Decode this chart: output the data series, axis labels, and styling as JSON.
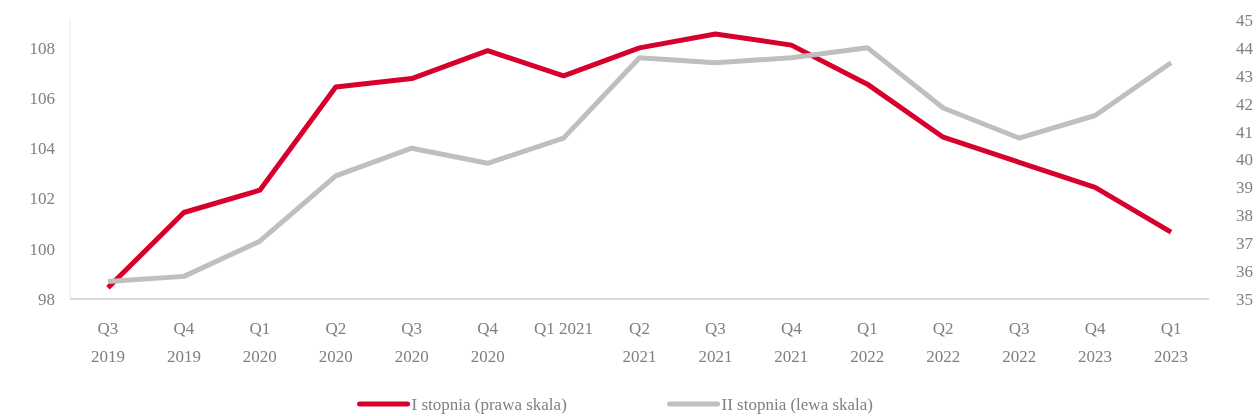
{
  "chart_data": {
    "type": "line",
    "categories": [
      "Q3\n2019",
      "Q4\n2019",
      "Q1\n2020",
      "Q2\n2020",
      "Q3\n2020",
      "Q4\n2020",
      "Q1 2021",
      "Q2\n2021",
      "Q3\n2021",
      "Q4\n2021",
      "Q1\n2022",
      "Q2\n2022",
      "Q3\n2022",
      "Q4\n2023",
      "Q1\n2023"
    ],
    "series": [
      {
        "name": "I stopnia (prawa skala)",
        "color": "#d7002d",
        "axis": "y2",
        "values": [
          35.4,
          38.1,
          38.9,
          42.6,
          42.9,
          43.9,
          43.0,
          44.0,
          44.5,
          44.1,
          42.7,
          40.8,
          39.9,
          39.0,
          37.4
        ]
      },
      {
        "name": "II stopnia (lewa skala)",
        "color": "#bfbfbf",
        "values": [
          98.7,
          98.9,
          100.3,
          102.9,
          104.0,
          103.4,
          104.4,
          107.6,
          107.4,
          107.6,
          108.0,
          105.6,
          104.4,
          105.3,
          107.4
        ]
      }
    ],
    "ylim": [
      98,
      109.1
    ],
    "yticks": [
      98,
      100,
      102,
      104,
      106,
      108
    ],
    "y2lim": [
      35,
      45
    ],
    "y2ticks": [
      35,
      36,
      37,
      38,
      39,
      40,
      41,
      42,
      43,
      44,
      45
    ],
    "grid": false,
    "legend": "bottom",
    "line_style": "solid",
    "marker": "none"
  }
}
